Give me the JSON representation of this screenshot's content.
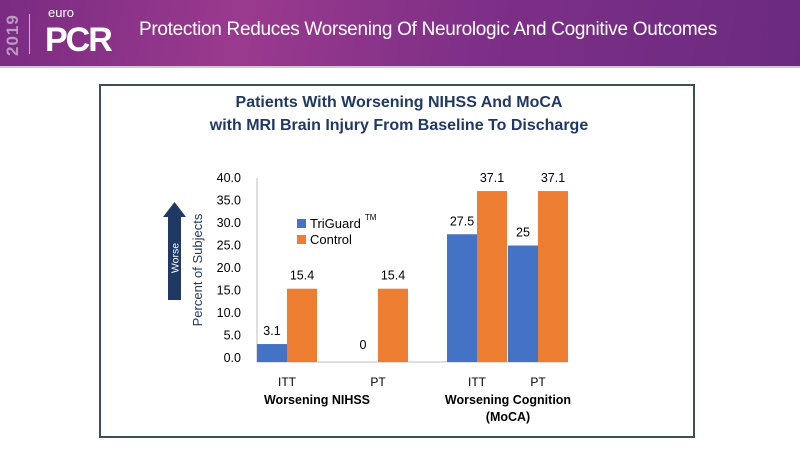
{
  "header": {
    "logo_year": "2019",
    "logo_top": "euro",
    "logo_main": "PCR",
    "title": "Protection Reduces Worsening Of Neurologic And Cognitive  Outcomes"
  },
  "annotation": {
    "arrow_label": "Worse"
  },
  "chart_data": {
    "type": "bar",
    "title_line1": "Patients With Worsening NIHSS And MoCA",
    "title_line2": "with MRI Brain Injury From Baseline To Discharge",
    "ylabel": "Percent of Subjects",
    "xlabel": "",
    "ylim": [
      0,
      40
    ],
    "yticks": [
      "0.0",
      "5.0",
      "10.0",
      "15.0",
      "20.0",
      "25.0",
      "30.0",
      "35.0",
      "40.0"
    ],
    "grid": false,
    "legend_position": "upper-left",
    "groups": [
      {
        "label": "Worsening NIHSS",
        "sublabel": "",
        "categories": [
          "ITT",
          "PT"
        ]
      },
      {
        "label": "Worsening Cognition",
        "sublabel": "(MoCA)",
        "categories": [
          "ITT",
          "PT"
        ]
      }
    ],
    "categories": [
      "ITT",
      "PT",
      "ITT",
      "PT"
    ],
    "series": [
      {
        "name": "TriGuard",
        "superscript": "TM",
        "color": "#4472c4",
        "values": [
          3.1,
          0,
          27.5,
          25
        ],
        "labels": [
          "3.1",
          "0",
          "27.5",
          "25"
        ]
      },
      {
        "name": "Control",
        "superscript": "",
        "color": "#ed7d31",
        "values": [
          15.4,
          15.4,
          37.1,
          37.1
        ],
        "labels": [
          "15.4",
          "15.4",
          "37.1",
          "37.1"
        ]
      }
    ]
  }
}
